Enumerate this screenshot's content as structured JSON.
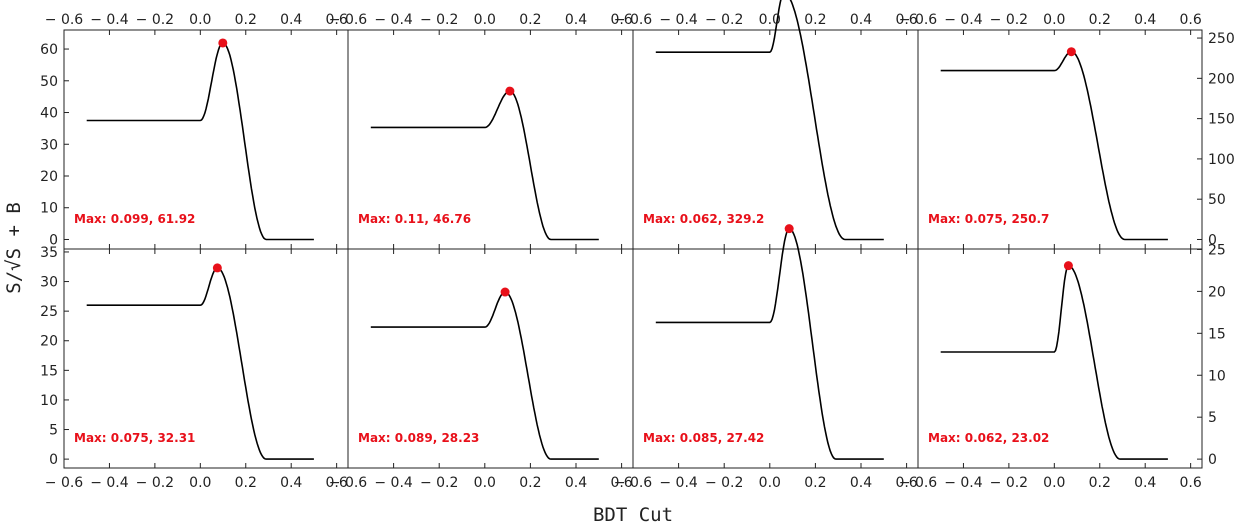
{
  "chart_data": {
    "type": "line",
    "xlabel": "BDT Cut",
    "ylabel": "S/√S + B",
    "x_ticks": [
      -0.6,
      -0.4,
      -0.2,
      0.0,
      0.2,
      0.4,
      0.6
    ],
    "x_tick_labels": [
      "− 0.6",
      "− 0.4",
      "− 0.2",
      "0.0",
      "0.2",
      "0.4",
      "0.6"
    ],
    "xlim": [
      -0.6,
      0.65
    ],
    "accent_color": "#e8101a",
    "line_color": "#000000",
    "rows": [
      {
        "ylim": [
          -3,
          66
        ],
        "left_ticks": [
          0,
          10,
          20,
          30,
          40,
          50,
          60
        ],
        "right_ticks": [
          0,
          50,
          100,
          150,
          200,
          250
        ],
        "right_scale": 0.236
      },
      {
        "ylim": [
          -1.5,
          35.5
        ],
        "left_ticks": [
          0,
          5,
          10,
          15,
          20,
          25,
          30,
          35
        ],
        "right_ticks": [
          0,
          5,
          10,
          15,
          20,
          25
        ],
        "right_scale": 1.42
      }
    ],
    "panels": [
      {
        "row": 0,
        "plateau": 37.5,
        "max_x": 0.099,
        "max_y": 61.92,
        "y_at_cut": 40,
        "label": "Max: 0.099, 61.92",
        "zero_x": 0.29
      },
      {
        "row": 0,
        "plateau": 35.3,
        "max_x": 0.11,
        "max_y": 46.76,
        "label": "Max: 0.11, 46.76",
        "zero_x": 0.29
      },
      {
        "row": 0,
        "plateau": 59,
        "max_x": 0.062,
        "max_y": 329.2,
        "label": "Max: 0.062, 329.2",
        "zero_x": 0.33
      },
      {
        "row": 0,
        "plateau": 53.2,
        "max_x": 0.075,
        "max_y": 250.7,
        "label": "Max: 0.075, 250.7",
        "zero_x": 0.31
      },
      {
        "row": 1,
        "plateau": 26,
        "max_x": 0.075,
        "max_y": 32.31,
        "label": "Max: 0.075, 32.31",
        "zero_x": 0.29
      },
      {
        "row": 1,
        "plateau": 22.3,
        "max_x": 0.089,
        "max_y": 28.23,
        "label": "Max: 0.089, 28.23",
        "zero_x": 0.29
      },
      {
        "row": 1,
        "plateau": 23.1,
        "max_x": 0.085,
        "max_y": 27.42,
        "label": "Max: 0.085, 27.42",
        "zero_x": 0.29
      },
      {
        "row": 1,
        "plateau": 18.1,
        "max_x": 0.062,
        "max_y": 23.02,
        "label": "Max: 0.062, 23.02",
        "zero_x": 0.29
      }
    ]
  }
}
